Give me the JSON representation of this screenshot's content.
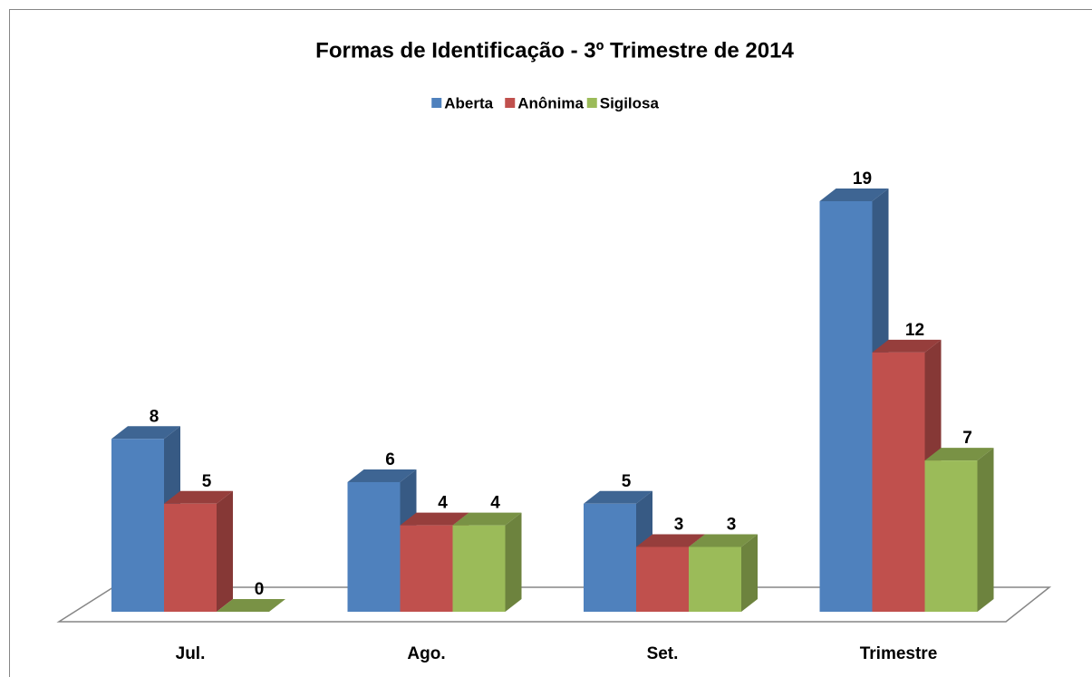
{
  "chart_data": {
    "type": "bar3d",
    "title": "Formas de Identificação - 3º Trimestre de 2014",
    "categories": [
      "Jul.",
      "Ago.",
      "Set.",
      "Trimestre"
    ],
    "series": [
      {
        "name": "Aberta",
        "color": "#4f81bd",
        "values": [
          8,
          6,
          5,
          19
        ]
      },
      {
        "name": "Anônima",
        "color": "#c0504d",
        "values": [
          5,
          4,
          3,
          12
        ]
      },
      {
        "name": "Sigilosa",
        "color": "#9bbb59",
        "values": [
          0,
          4,
          3,
          7
        ]
      }
    ],
    "legend": "top"
  }
}
